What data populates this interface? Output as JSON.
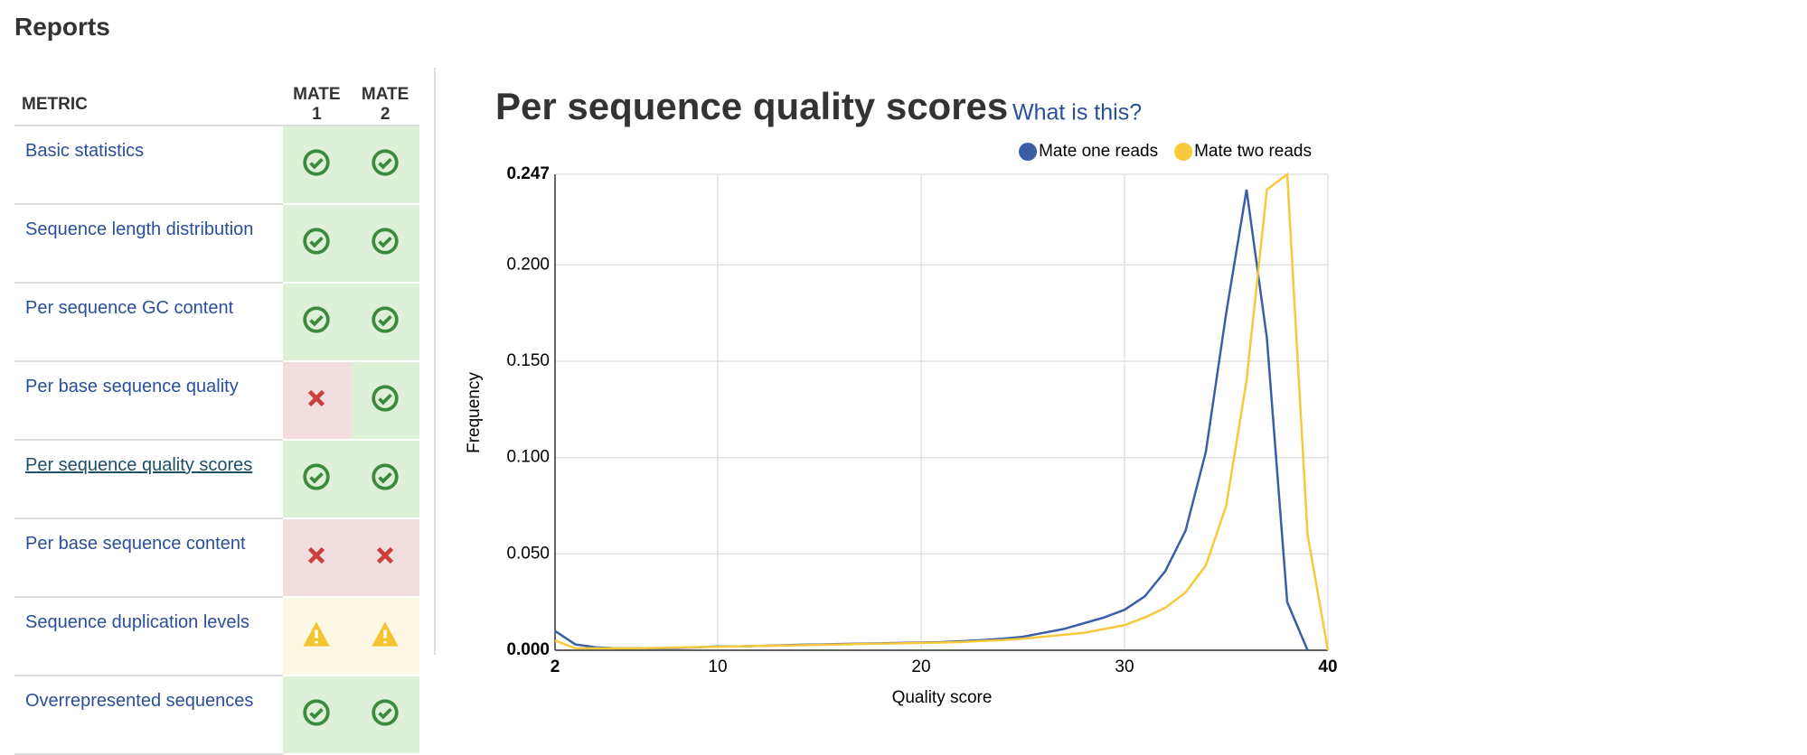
{
  "header": {
    "title": "Reports"
  },
  "table": {
    "columns": [
      "METRIC",
      "MATE 1",
      "MATE 2"
    ],
    "rows": [
      "Basic statistics",
      "Sequence length distribution",
      "Per sequence GC content",
      "Per base sequence quality",
      "Per sequence quality scores",
      "Per base sequence content",
      "Sequence duplication levels",
      "Overrepresented sequences"
    ]
  },
  "chart_data": {
    "type": "line",
    "title": "Per sequence quality scores",
    "help_link": "What is this?",
    "x_label": "Quality score",
    "y_label": "Frequency",
    "x": [
      2,
      3,
      4,
      5,
      6,
      7,
      8,
      9,
      10,
      11,
      12,
      13,
      14,
      15,
      16,
      17,
      18,
      19,
      20,
      21,
      22,
      23,
      24,
      25,
      26,
      27,
      28,
      29,
      30,
      31,
      32,
      33,
      34,
      35,
      36,
      37,
      38,
      39,
      40
    ],
    "series": [
      {
        "name": "Mate one reads",
        "color": "#3b5ea8",
        "values": [
          0.01,
          0.003,
          0.0015,
          0.001,
          0.001,
          0.001,
          0.0012,
          0.0015,
          0.002,
          0.002,
          0.0022,
          0.0025,
          0.0028,
          0.003,
          0.0032,
          0.0034,
          0.0036,
          0.0038,
          0.004,
          0.0042,
          0.0047,
          0.0053,
          0.006,
          0.007,
          0.009,
          0.011,
          0.014,
          0.017,
          0.021,
          0.028,
          0.041,
          0.062,
          0.103,
          0.175,
          0.239,
          0.162,
          0.025,
          0.0,
          null
        ]
      },
      {
        "name": "Mate two reads",
        "color": "#f8c93a",
        "values": [
          0.005,
          0.001,
          0.001,
          0.001,
          0.001,
          0.0012,
          0.0014,
          0.0016,
          0.0018,
          0.002,
          0.0022,
          0.0024,
          0.0026,
          0.0028,
          0.003,
          0.0032,
          0.0034,
          0.0036,
          0.0038,
          0.004,
          0.0043,
          0.0048,
          0.0053,
          0.006,
          0.007,
          0.008,
          0.009,
          0.011,
          0.013,
          0.017,
          0.022,
          0.03,
          0.044,
          0.075,
          0.14,
          0.239,
          0.247,
          0.06,
          0.0
        ]
      }
    ],
    "xlim": [
      2,
      40
    ],
    "ylim": [
      0,
      0.247
    ],
    "xticks": [
      2,
      10,
      20,
      30,
      40
    ],
    "yticks": [
      {
        "value": 0,
        "label": "0.000"
      },
      {
        "value": 0.05,
        "label": "0.050"
      },
      {
        "value": 0.1,
        "label": "0.100"
      },
      {
        "value": 0.15,
        "label": "0.150"
      },
      {
        "value": 0.2,
        "label": "0.200"
      },
      {
        "value": 0.247,
        "label": "0.247"
      }
    ],
    "grid": true,
    "legend": "top-right"
  }
}
